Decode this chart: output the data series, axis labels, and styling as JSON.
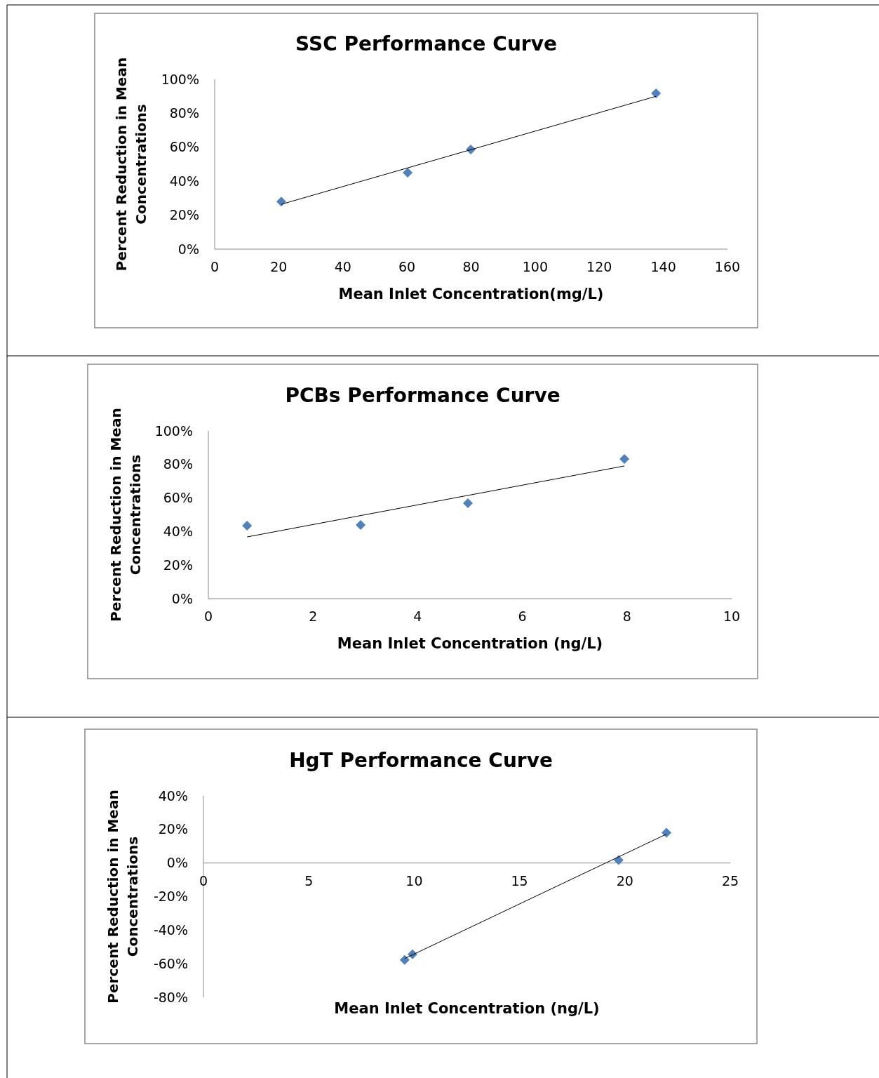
{
  "chart_data": [
    {
      "type": "scatter",
      "title": "SSC Performance Curve",
      "xlabel": "Mean Inlet Concentration(mg/L)",
      "ylabel": "Percent Reduction in Mean Concentrations",
      "xlim": [
        0,
        160
      ],
      "xticks": [
        0,
        20,
        40,
        60,
        80,
        100,
        120,
        140,
        160
      ],
      "ylim": [
        0,
        100
      ],
      "yticks": [
        {
          "value": 0,
          "label": "0%"
        },
        {
          "value": 20,
          "label": "20%"
        },
        {
          "value": 40,
          "label": "40%"
        },
        {
          "value": 60,
          "label": "60%"
        },
        {
          "value": 80,
          "label": "80%"
        },
        {
          "value": 100,
          "label": "100%"
        }
      ],
      "grid": false,
      "series": [
        {
          "color": "#4f81bd",
          "marker": "diamond",
          "x": [
            20.8,
            60.2,
            79.9,
            137.7
          ],
          "values": [
            28,
            45,
            58.7,
            91.7
          ]
        },
        {
          "type": "line",
          "color": "#000000",
          "marker": "none",
          "x": [
            20.8,
            137.7
          ],
          "values": [
            26.4,
            90
          ]
        }
      ]
    },
    {
      "type": "scatter",
      "title": "PCBs Performance Curve",
      "xlabel": "Mean Inlet Concentration  (ng/L)",
      "ylabel": "Percent Reduction in Mean Concentrations",
      "xlim": [
        0,
        10
      ],
      "xticks": [
        0,
        2,
        4,
        6,
        8,
        10
      ],
      "ylim": [
        0,
        100
      ],
      "yticks": [
        {
          "value": 0,
          "label": "0%"
        },
        {
          "value": 20,
          "label": "20%"
        },
        {
          "value": 40,
          "label": "40%"
        },
        {
          "value": 60,
          "label": "60%"
        },
        {
          "value": 80,
          "label": "80%"
        },
        {
          "value": 100,
          "label": "100%"
        }
      ],
      "grid": false,
      "series": [
        {
          "color": "#4f81bd",
          "marker": "diamond",
          "x": [
            0.74,
            2.91,
            4.96,
            7.95
          ],
          "values": [
            43.5,
            43.9,
            56.9,
            83.3
          ]
        },
        {
          "type": "line",
          "color": "#000000",
          "marker": "none",
          "x": [
            0.74,
            7.95
          ],
          "values": [
            36.8,
            79.1
          ]
        }
      ]
    },
    {
      "type": "scatter",
      "title": "HgT Performance Curve",
      "xlabel": "Mean Inlet Concentration  (ng/L)",
      "ylabel": "Percent Reduction in Mean Concentrations",
      "xlim": [
        0,
        25
      ],
      "xticks": [
        0,
        5,
        10,
        15,
        20,
        25
      ],
      "ylim": [
        -80,
        40
      ],
      "yticks": [
        {
          "value": -80,
          "label": "-80%"
        },
        {
          "value": -60,
          "label": "-60%"
        },
        {
          "value": -40,
          "label": "-40%"
        },
        {
          "value": -20,
          "label": "-20%"
        },
        {
          "value": 0,
          "label": "0%"
        },
        {
          "value": 20,
          "label": "20%"
        },
        {
          "value": 40,
          "label": "40%"
        }
      ],
      "grid": false,
      "series": [
        {
          "color": "#4f81bd",
          "marker": "diamond",
          "x": [
            9.55,
            9.92,
            19.7,
            21.97
          ],
          "values": [
            -57.7,
            -54.4,
            1.7,
            18
          ]
        },
        {
          "type": "line",
          "color": "#000000",
          "marker": "none",
          "x": [
            9.55,
            21.97
          ],
          "values": [
            -56.9,
            17.2
          ]
        }
      ]
    }
  ]
}
